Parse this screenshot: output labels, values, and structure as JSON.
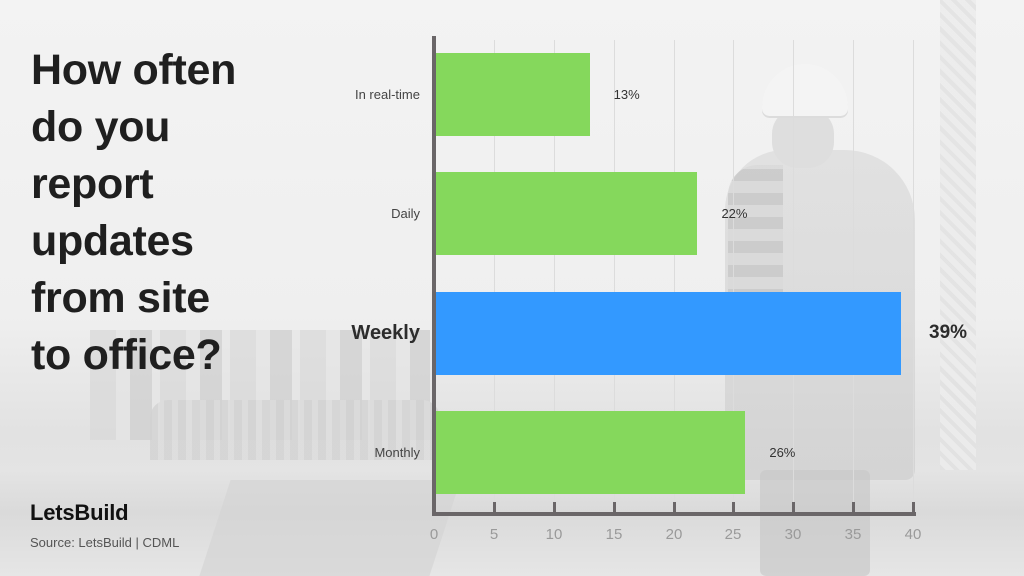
{
  "title": "How often do you report updates from site to office?",
  "title_lines": [
    "How often",
    "do you",
    "report",
    "updates",
    "from site",
    "to office?"
  ],
  "brand": "LetsBuild",
  "source": "Source: LetsBuild | CDML",
  "colors": {
    "default_bar": "#85d85c",
    "highlight_bar": "#3399ff",
    "axis": "#6a6668",
    "title_text": "#1f1f1f"
  },
  "chart_data": {
    "type": "bar",
    "orientation": "horizontal",
    "title": "How often do you report updates from site to office?",
    "categories": [
      "In real-time",
      "Daily",
      "Weekly",
      "Monthly"
    ],
    "values": [
      13,
      22,
      39,
      26
    ],
    "value_labels": [
      "13%",
      "22%",
      "39%",
      "26%"
    ],
    "highlighted": "Weekly",
    "xlabel": "",
    "ylabel": "",
    "xlim": [
      0,
      40
    ],
    "x_ticks": [
      0,
      5,
      10,
      15,
      20,
      25,
      30,
      35,
      40
    ],
    "x_tick_labels": [
      "0",
      "5",
      "10",
      "15",
      "20",
      "25",
      "30",
      "35",
      "40"
    ],
    "grid": "vertical",
    "legend": "none",
    "source": "LetsBuild | CDML"
  }
}
